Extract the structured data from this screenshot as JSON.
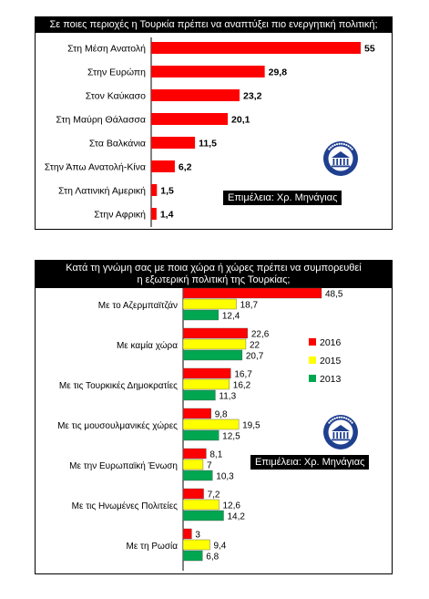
{
  "chart_data": [
    {
      "type": "bar",
      "orientation": "horizontal",
      "title": "Σε ποιες περιοχές η Τουρκία πρέπει να αναπτύξει πιο ενεργητική πολιτική;",
      "categories": [
        "Στη Μέση Ανατολή",
        "Στην Ευρώπη",
        "Στον Καύκασο",
        "Στη Μαύρη Θάλασσα",
        "Στα Βαλκάνια",
        "Στην Άπω Ανατολή-Κίνα",
        "Στη Λατινική Αμερική",
        "Στην Αφρική"
      ],
      "series": [
        {
          "values": [
            55,
            29.8,
            23.2,
            20.1,
            11.5,
            6.2,
            1.5,
            1.4
          ],
          "labels": [
            "55",
            "29,8",
            "23,2",
            "20,1",
            "11,5",
            "6,2",
            "1,5",
            "1,4"
          ],
          "color": "#ff0000"
        }
      ],
      "xlim": [
        0,
        55
      ],
      "grid": false,
      "legend": "none",
      "credit": "Επιμέλεια: Χρ. Μηνάγιας"
    },
    {
      "type": "bar",
      "orientation": "horizontal",
      "title_lines": [
        "Κατά τη γνώμη σας με ποια χώρα ή χώρες πρέπει να συμπορευθεί",
        "η εξωτερική πολιτική της Τουρκίας;"
      ],
      "categories": [
        "Με το Αζερμπαϊτζάν",
        "Με καμία χώρα",
        "Με τις Τουρκικές Δημοκρατίες",
        "Με τις μουσουλμανικές χώρες",
        "Με την Ευρωπαϊκή Ένωση",
        "Με τις Ηνωμένες Πολιτείες",
        "Με τη Ρωσία"
      ],
      "series": [
        {
          "name": "2016",
          "color": "#ff0000",
          "values": [
            48.5,
            22.6,
            16.7,
            9.8,
            8.1,
            7.2,
            3
          ],
          "labels": [
            "48,5",
            "22,6",
            "16,7",
            "9,8",
            "8,1",
            "7,2",
            "3"
          ]
        },
        {
          "name": "2015",
          "color": "#ffff00",
          "values": [
            18.7,
            22,
            16.2,
            19.5,
            7,
            12.6,
            9.4
          ],
          "labels": [
            "18,7",
            "22",
            "16,2",
            "19,5",
            "7",
            "12,6",
            "9,4"
          ]
        },
        {
          "name": "2013",
          "color": "#00a650",
          "values": [
            12.4,
            20.7,
            11.3,
            12.5,
            10.3,
            14.2,
            6.8
          ],
          "labels": [
            "12,4",
            "20,7",
            "11,3",
            "12,5",
            "10,3",
            "14,2",
            "6,8"
          ]
        }
      ],
      "xlim": [
        0,
        48.5
      ],
      "grid": false,
      "legend": "right",
      "credit": "Επιμέλεια: Χρ. Μηνάγιας"
    }
  ],
  "seal": {
    "icon": "kadir-has-university-seal-icon",
    "color": "#1f3f8f"
  }
}
